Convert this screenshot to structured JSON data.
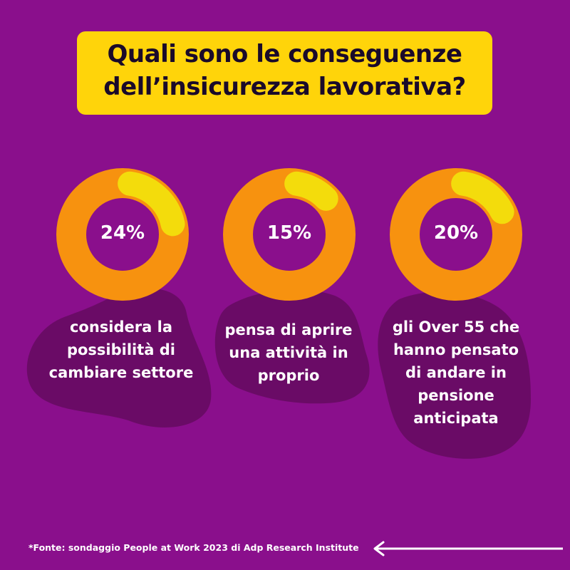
{
  "title": {
    "line1": "Quali sono le conseguenze",
    "line2": "dell’insicurezza lavorativa?"
  },
  "colors": {
    "background": "#8a0f8c",
    "title_box": "#ffd40a",
    "ring": "#f7920f",
    "highlight": "#f3dc0c",
    "blob": "#6a0b66"
  },
  "chart_data": {
    "type": "pie",
    "items": [
      {
        "value": 24,
        "value_label": "24%",
        "label_lines": [
          "considera la",
          "possibilità di",
          "cambiare settore"
        ]
      },
      {
        "value": 15,
        "value_label": "15%",
        "label_lines": [
          "pensa di aprire",
          "una attività in",
          "proprio"
        ]
      },
      {
        "value": 20,
        "value_label": "20%",
        "label_lines": [
          "gli Over 55 che",
          "hanno pensato",
          "di andare in",
          "pensione",
          "anticipata"
        ]
      }
    ]
  },
  "footnote": "*Fonte: sondaggio People at Work 2023 di Adp Research Institute",
  "icons": {
    "back_arrow": "arrow-left-icon"
  }
}
